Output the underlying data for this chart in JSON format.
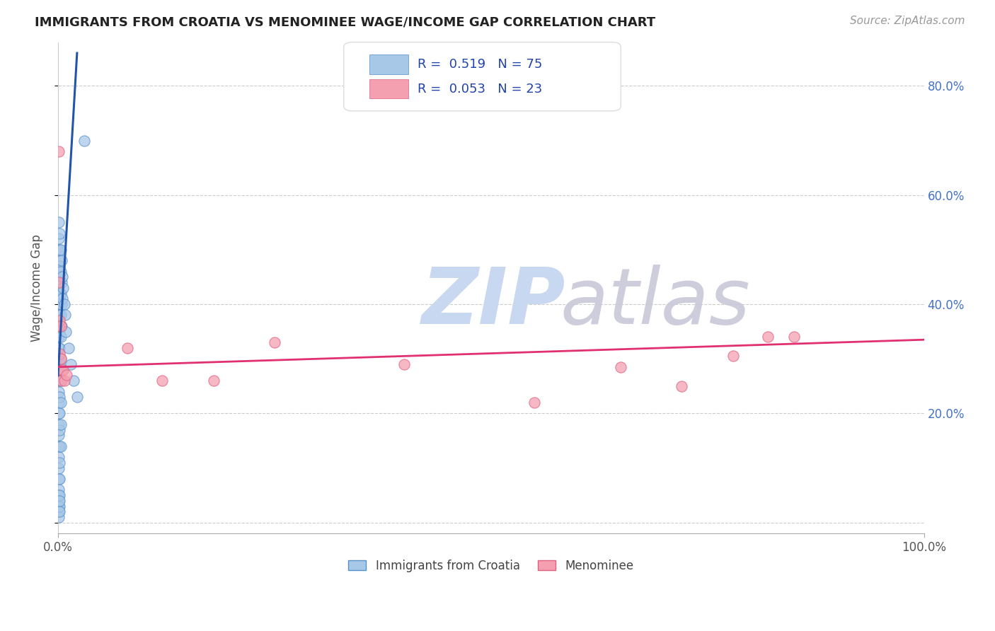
{
  "title": "IMMIGRANTS FROM CROATIA VS MENOMINEE WAGE/INCOME GAP CORRELATION CHART",
  "source": "Source: ZipAtlas.com",
  "ylabel": "Wage/Income Gap",
  "xlim": [
    0.0,
    1.0
  ],
  "ylim": [
    -0.02,
    0.88
  ],
  "yticks": [
    0.0,
    0.2,
    0.4,
    0.6,
    0.8
  ],
  "xticks": [
    0.0,
    1.0
  ],
  "xtick_labels": [
    "0.0%",
    "100.0%"
  ],
  "ytick_labels": [
    "",
    "20.0%",
    "40.0%",
    "60.0%",
    "80.0%"
  ],
  "blue_R": "0.519",
  "blue_N": "75",
  "pink_R": "0.053",
  "pink_N": "23",
  "blue_color": "#a8c8e8",
  "pink_color": "#f4a0b0",
  "blue_edge_color": "#5590c8",
  "pink_edge_color": "#e06080",
  "blue_line_color": "#2255aa",
  "pink_line_color": "#e03070",
  "legend_label_blue": "Immigrants from Croatia",
  "legend_label_pink": "Menominee",
  "blue_scatter_x": [
    0.001,
    0.001,
    0.001,
    0.001,
    0.001,
    0.001,
    0.001,
    0.001,
    0.001,
    0.001,
    0.001,
    0.001,
    0.001,
    0.001,
    0.001,
    0.001,
    0.001,
    0.001,
    0.001,
    0.001,
    0.001,
    0.001,
    0.001,
    0.001,
    0.001,
    0.001,
    0.001,
    0.001,
    0.001,
    0.001,
    0.002,
    0.002,
    0.002,
    0.002,
    0.002,
    0.002,
    0.002,
    0.002,
    0.002,
    0.002,
    0.002,
    0.002,
    0.002,
    0.002,
    0.002,
    0.002,
    0.002,
    0.002,
    0.002,
    0.002,
    0.003,
    0.003,
    0.003,
    0.003,
    0.003,
    0.003,
    0.003,
    0.003,
    0.003,
    0.003,
    0.004,
    0.004,
    0.004,
    0.004,
    0.005,
    0.005,
    0.006,
    0.007,
    0.008,
    0.009,
    0.012,
    0.015,
    0.018,
    0.022,
    0.03
  ],
  "blue_scatter_y": [
    0.55,
    0.52,
    0.5,
    0.48,
    0.46,
    0.44,
    0.42,
    0.4,
    0.38,
    0.36,
    0.34,
    0.32,
    0.3,
    0.28,
    0.26,
    0.24,
    0.22,
    0.2,
    0.18,
    0.16,
    0.14,
    0.12,
    0.1,
    0.08,
    0.06,
    0.04,
    0.02,
    0.01,
    0.03,
    0.05,
    0.53,
    0.5,
    0.47,
    0.44,
    0.41,
    0.38,
    0.35,
    0.32,
    0.29,
    0.26,
    0.23,
    0.2,
    0.17,
    0.14,
    0.11,
    0.08,
    0.05,
    0.03,
    0.02,
    0.04,
    0.5,
    0.46,
    0.42,
    0.38,
    0.34,
    0.3,
    0.26,
    0.22,
    0.18,
    0.14,
    0.48,
    0.44,
    0.4,
    0.36,
    0.45,
    0.41,
    0.43,
    0.4,
    0.38,
    0.35,
    0.32,
    0.29,
    0.26,
    0.23,
    0.7
  ],
  "pink_scatter_x": [
    0.001,
    0.001,
    0.001,
    0.002,
    0.002,
    0.003,
    0.003,
    0.004,
    0.004,
    0.006,
    0.007,
    0.01,
    0.08,
    0.12,
    0.18,
    0.25,
    0.4,
    0.55,
    0.65,
    0.72,
    0.78,
    0.82,
    0.85
  ],
  "pink_scatter_y": [
    0.68,
    0.44,
    0.36,
    0.37,
    0.31,
    0.36,
    0.3,
    0.28,
    0.26,
    0.28,
    0.26,
    0.27,
    0.32,
    0.26,
    0.26,
    0.33,
    0.29,
    0.22,
    0.285,
    0.25,
    0.305,
    0.34,
    0.34
  ],
  "blue_trendline_x": [
    0.0,
    0.022
  ],
  "blue_trendline_y": [
    0.27,
    0.86
  ],
  "pink_trendline_x": [
    0.0,
    1.0
  ],
  "pink_trendline_y": [
    0.285,
    0.335
  ],
  "watermark_zip_color": "#c8d8f0",
  "watermark_atlas_color": "#c8c8d8",
  "bg_color": "#ffffff",
  "grid_color": "#cccccc",
  "tick_color": "#4472c4"
}
